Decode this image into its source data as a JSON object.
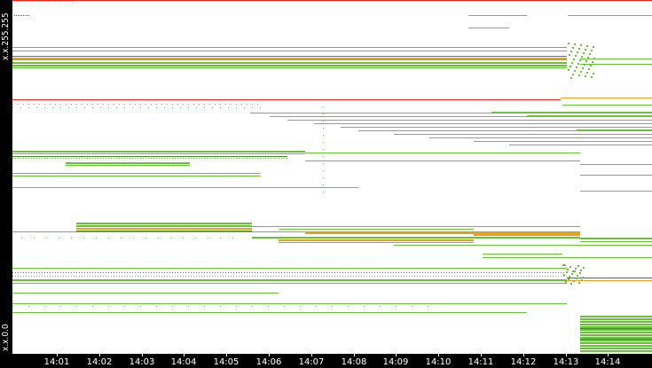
{
  "chart_data": {
    "type": "scatter",
    "y_axis": {
      "top_label": "x.x.255.255",
      "bottom_label": "x.x.0.0"
    },
    "x_axis": {
      "tick_labels": [
        "14:01",
        "14:02",
        "14:03",
        "14:04",
        "14:05",
        "14:06",
        "14:07",
        "14:08",
        "14:09",
        "14:10",
        "14:11",
        "14:12",
        "14:13",
        "14:14"
      ]
    },
    "colors": {
      "low": "#6cbf3a",
      "medium": "#e7a21b",
      "high": "#e8261f",
      "dark": "#3d8f2a"
    }
  }
}
